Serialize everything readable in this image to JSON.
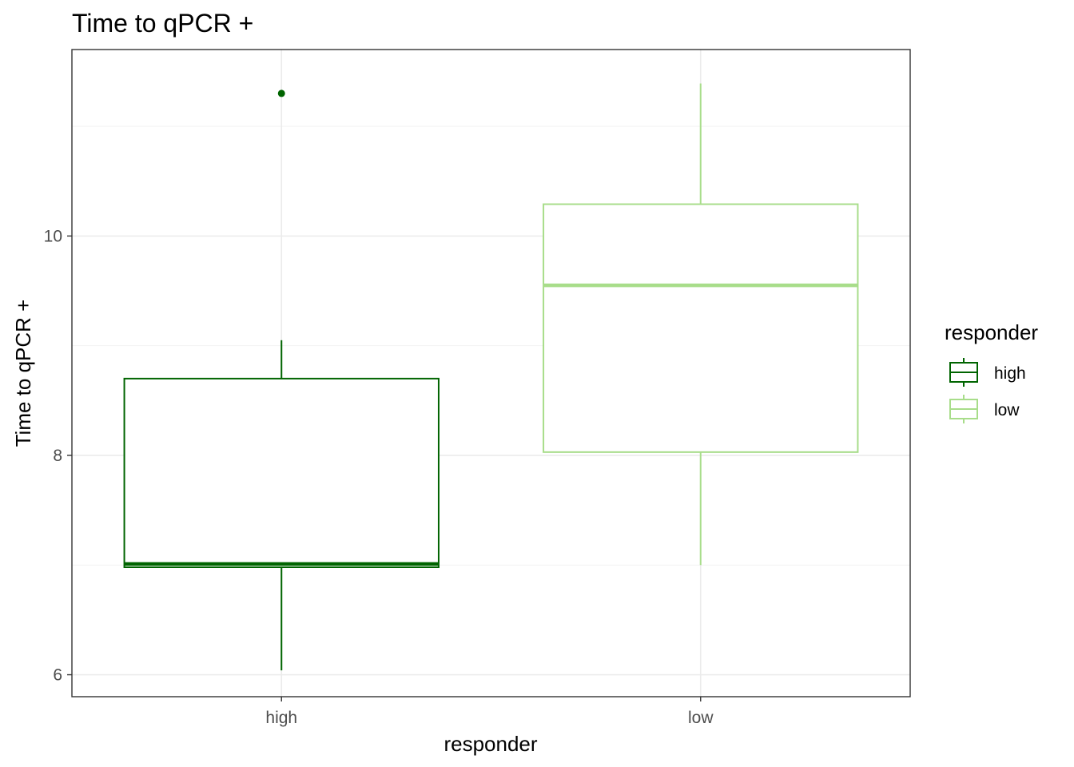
{
  "chart_data": {
    "type": "boxplot",
    "title": "Time to qPCR +",
    "xlabel": "responder",
    "ylabel": "Time to qPCR +",
    "ylim": [
      5.8,
      11.7
    ],
    "yticks": [
      6,
      8,
      10
    ],
    "grid": true,
    "legend": {
      "title": "responder",
      "placement": "right",
      "entries": [
        "high",
        "low"
      ]
    },
    "categories": [
      "high",
      "low"
    ],
    "series": [
      {
        "name": "high",
        "color": "#006400",
        "whisker_low": 6.04,
        "q1": 6.98,
        "median": 7.01,
        "q3": 8.7,
        "whisker_high": 9.05,
        "outliers": [
          11.3
        ]
      },
      {
        "name": "low",
        "color": "#a8dd8a",
        "whisker_low": 7.0,
        "q1": 8.03,
        "median": 9.55,
        "q3": 10.29,
        "whisker_high": 11.39,
        "outliers": []
      }
    ]
  }
}
